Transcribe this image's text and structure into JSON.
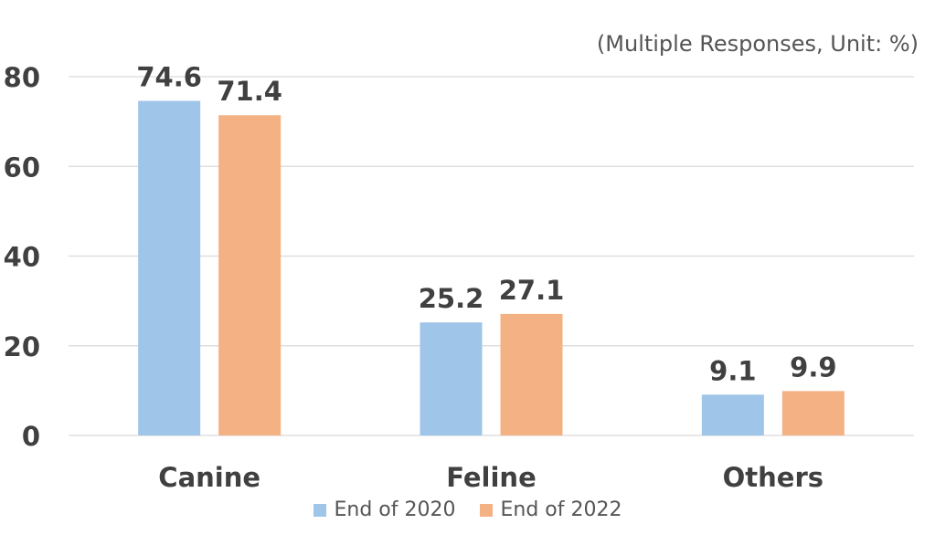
{
  "note": "(Multiple Responses, Unit: %)",
  "colors": {
    "series1": "#9fc5e8",
    "series2": "#f4b183",
    "grid": "#d9d9d9",
    "text": "#404040"
  },
  "chart_data": {
    "type": "bar",
    "categories": [
      "Canine",
      "Feline",
      "Others"
    ],
    "series": [
      {
        "name": "End of 2020",
        "values": [
          74.6,
          25.2,
          9.1
        ]
      },
      {
        "name": "End of 2022",
        "values": [
          71.4,
          27.1,
          9.9
        ]
      }
    ],
    "ylim": [
      0,
      80
    ],
    "yticks": [
      0,
      20,
      40,
      60,
      80
    ],
    "ytick_labels": [
      "0",
      "20",
      "40",
      "60",
      "80"
    ],
    "data_labels": [
      [
        "74.6",
        "25.2",
        "9.1"
      ],
      [
        "71.4",
        "27.1",
        "9.9"
      ]
    ],
    "grid": true,
    "legend": "bottom"
  }
}
